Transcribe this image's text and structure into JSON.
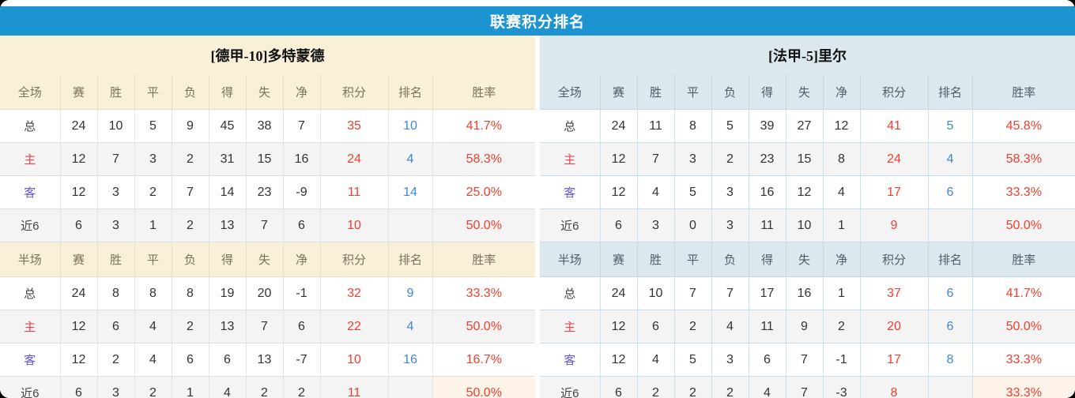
{
  "title": "联赛积分排名",
  "full_label": "全场",
  "half_label": "半场",
  "stat_columns": [
    "赛",
    "胜",
    "平",
    "负",
    "得",
    "失",
    "净",
    "积分",
    "排名",
    "胜率"
  ],
  "colors": {
    "accent_blue": "#1d94d2",
    "points_red": "#f53d2d",
    "rank_blue": "#3d87d8",
    "home_label_red": "#ef4350",
    "away_label_purple": "#6658d8",
    "left_header_bg": "#f9f0d8",
    "right_header_bg": "#dde7ee"
  },
  "teams": [
    {
      "name": "[德甲-10]多特蒙德",
      "full": {
        "rows": [
          {
            "label": "总",
            "cells": [
              24,
              10,
              5,
              9,
              45,
              38,
              7
            ],
            "points": 35,
            "rank": 10,
            "rate": "41.7%"
          },
          {
            "label": "主",
            "cells": [
              12,
              7,
              3,
              2,
              31,
              15,
              16
            ],
            "points": 24,
            "rank": 4,
            "rate": "58.3%"
          },
          {
            "label": "客",
            "cells": [
              12,
              3,
              2,
              7,
              14,
              23,
              -9
            ],
            "points": 11,
            "rank": 14,
            "rate": "25.0%"
          },
          {
            "label": "近6",
            "cells": [
              6,
              3,
              1,
              2,
              13,
              7,
              6
            ],
            "points": 10,
            "rank": "",
            "rate": "50.0%"
          }
        ]
      },
      "half": {
        "rows": [
          {
            "label": "总",
            "cells": [
              24,
              8,
              8,
              8,
              19,
              20,
              -1
            ],
            "points": 32,
            "rank": 9,
            "rate": "33.3%"
          },
          {
            "label": "主",
            "cells": [
              12,
              6,
              4,
              2,
              13,
              7,
              6
            ],
            "points": 22,
            "rank": 4,
            "rate": "50.0%"
          },
          {
            "label": "客",
            "cells": [
              12,
              2,
              4,
              6,
              6,
              13,
              -7
            ],
            "points": 10,
            "rank": 16,
            "rate": "16.7%"
          },
          {
            "label": "近6",
            "cells": [
              6,
              3,
              2,
              1,
              4,
              2,
              2
            ],
            "points": 11,
            "rank": "",
            "rate": "50.0%"
          }
        ]
      }
    },
    {
      "name": "[法甲-5]里尔",
      "full": {
        "rows": [
          {
            "label": "总",
            "cells": [
              24,
              11,
              8,
              5,
              39,
              27,
              12
            ],
            "points": 41,
            "rank": 5,
            "rate": "45.8%"
          },
          {
            "label": "主",
            "cells": [
              12,
              7,
              3,
              2,
              23,
              15,
              8
            ],
            "points": 24,
            "rank": 4,
            "rate": "58.3%"
          },
          {
            "label": "客",
            "cells": [
              12,
              4,
              5,
              3,
              16,
              12,
              4
            ],
            "points": 17,
            "rank": 6,
            "rate": "33.3%"
          },
          {
            "label": "近6",
            "cells": [
              6,
              3,
              0,
              3,
              11,
              10,
              1
            ],
            "points": 9,
            "rank": "",
            "rate": "50.0%"
          }
        ]
      },
      "half": {
        "rows": [
          {
            "label": "总",
            "cells": [
              24,
              10,
              7,
              7,
              17,
              16,
              1
            ],
            "points": 37,
            "rank": 6,
            "rate": "41.7%"
          },
          {
            "label": "主",
            "cells": [
              12,
              6,
              2,
              4,
              11,
              9,
              2
            ],
            "points": 20,
            "rank": 6,
            "rate": "50.0%"
          },
          {
            "label": "客",
            "cells": [
              12,
              4,
              5,
              3,
              6,
              7,
              -1
            ],
            "points": 17,
            "rank": 8,
            "rate": "33.3%"
          },
          {
            "label": "近6",
            "cells": [
              6,
              2,
              2,
              2,
              4,
              7,
              -3
            ],
            "points": 8,
            "rank": "",
            "rate": "33.3%"
          }
        ]
      }
    }
  ]
}
